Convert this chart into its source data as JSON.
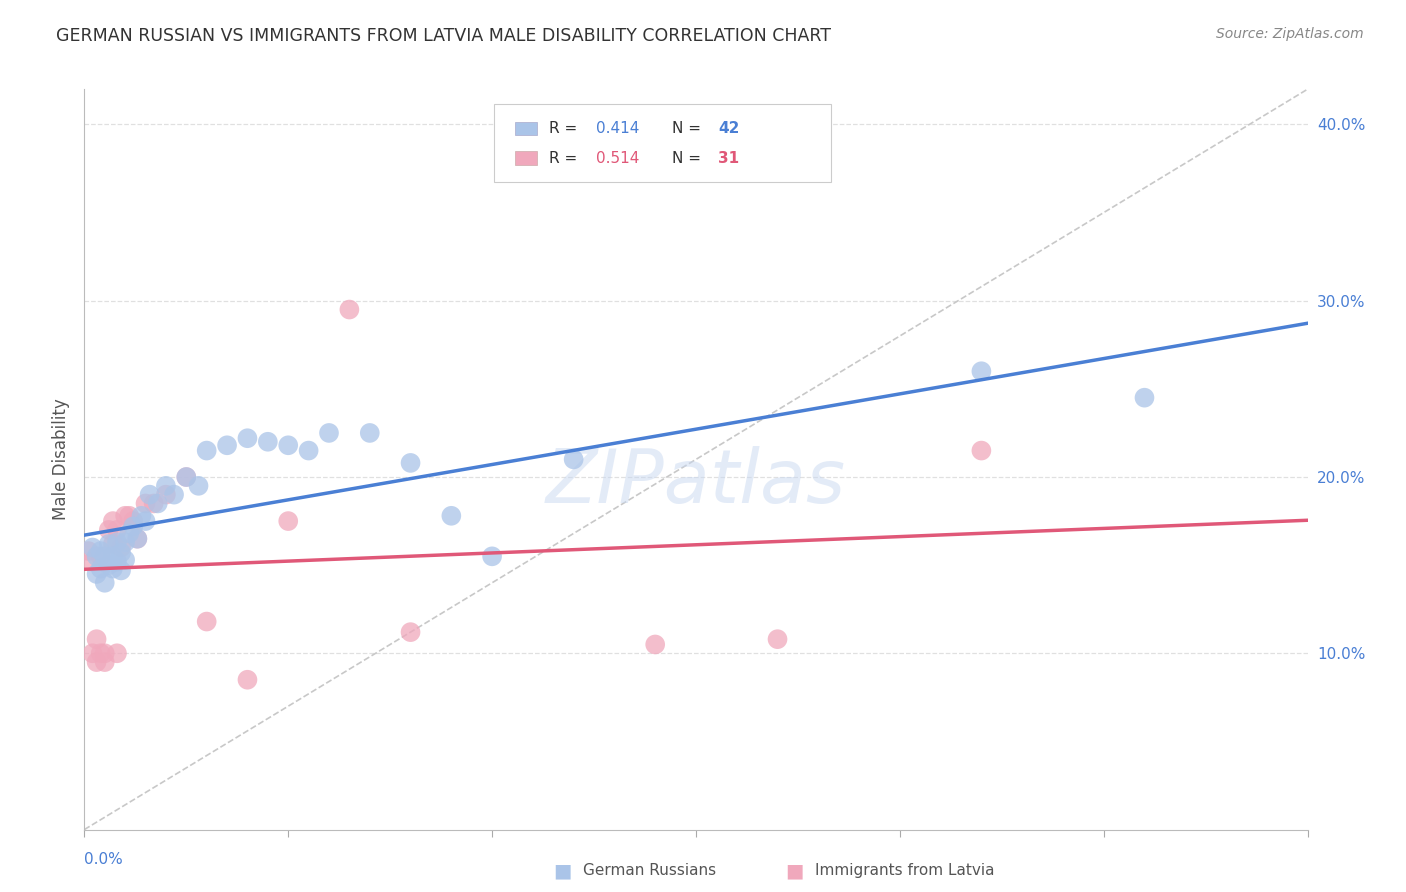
{
  "title": "GERMAN RUSSIAN VS IMMIGRANTS FROM LATVIA MALE DISABILITY CORRELATION CHART",
  "source": "Source: ZipAtlas.com",
  "ylabel": "Male Disability",
  "right_yticks": [
    "40.0%",
    "30.0%",
    "20.0%",
    "10.0%"
  ],
  "right_ytick_vals": [
    0.4,
    0.3,
    0.2,
    0.1
  ],
  "xlim": [
    0.0,
    0.3
  ],
  "ylim": [
    0.0,
    0.42
  ],
  "blue_R": "0.414",
  "blue_N": "42",
  "pink_R": "0.514",
  "pink_N": "31",
  "blue_scatter_x": [
    0.002,
    0.003,
    0.003,
    0.004,
    0.004,
    0.005,
    0.005,
    0.006,
    0.006,
    0.007,
    0.007,
    0.008,
    0.008,
    0.009,
    0.009,
    0.01,
    0.01,
    0.011,
    0.012,
    0.013,
    0.014,
    0.015,
    0.016,
    0.018,
    0.02,
    0.022,
    0.025,
    0.028,
    0.03,
    0.035,
    0.04,
    0.045,
    0.05,
    0.055,
    0.06,
    0.07,
    0.08,
    0.09,
    0.1,
    0.12,
    0.22,
    0.26
  ],
  "blue_scatter_y": [
    0.16,
    0.155,
    0.145,
    0.158,
    0.148,
    0.155,
    0.14,
    0.162,
    0.15,
    0.155,
    0.148,
    0.152,
    0.163,
    0.157,
    0.147,
    0.163,
    0.153,
    0.168,
    0.172,
    0.165,
    0.178,
    0.175,
    0.19,
    0.185,
    0.195,
    0.19,
    0.2,
    0.195,
    0.215,
    0.218,
    0.222,
    0.22,
    0.218,
    0.215,
    0.225,
    0.225,
    0.208,
    0.178,
    0.155,
    0.21,
    0.26,
    0.245
  ],
  "pink_scatter_x": [
    0.001,
    0.002,
    0.002,
    0.003,
    0.003,
    0.004,
    0.004,
    0.005,
    0.005,
    0.006,
    0.007,
    0.007,
    0.008,
    0.008,
    0.009,
    0.01,
    0.011,
    0.012,
    0.013,
    0.015,
    0.017,
    0.02,
    0.025,
    0.03,
    0.04,
    0.05,
    0.065,
    0.08,
    0.14,
    0.17,
    0.22
  ],
  "pink_scatter_y": [
    0.158,
    0.152,
    0.1,
    0.108,
    0.095,
    0.1,
    0.155,
    0.1,
    0.095,
    0.17,
    0.175,
    0.162,
    0.17,
    0.1,
    0.16,
    0.178,
    0.178,
    0.175,
    0.165,
    0.185,
    0.185,
    0.19,
    0.2,
    0.118,
    0.085,
    0.175,
    0.295,
    0.112,
    0.105,
    0.108,
    0.215
  ],
  "blue_line_color": "#4a7fd4",
  "pink_line_color": "#e05878",
  "blue_scatter_color": "#aac4e8",
  "pink_scatter_color": "#f0a8bc",
  "diagonal_line_color": "#c8c8c8",
  "watermark": "ZIPatlas",
  "background_color": "#ffffff",
  "grid_color": "#e0e0e0",
  "legend_blue_label": "German Russians",
  "legend_pink_label": "Immigrants from Latvia"
}
